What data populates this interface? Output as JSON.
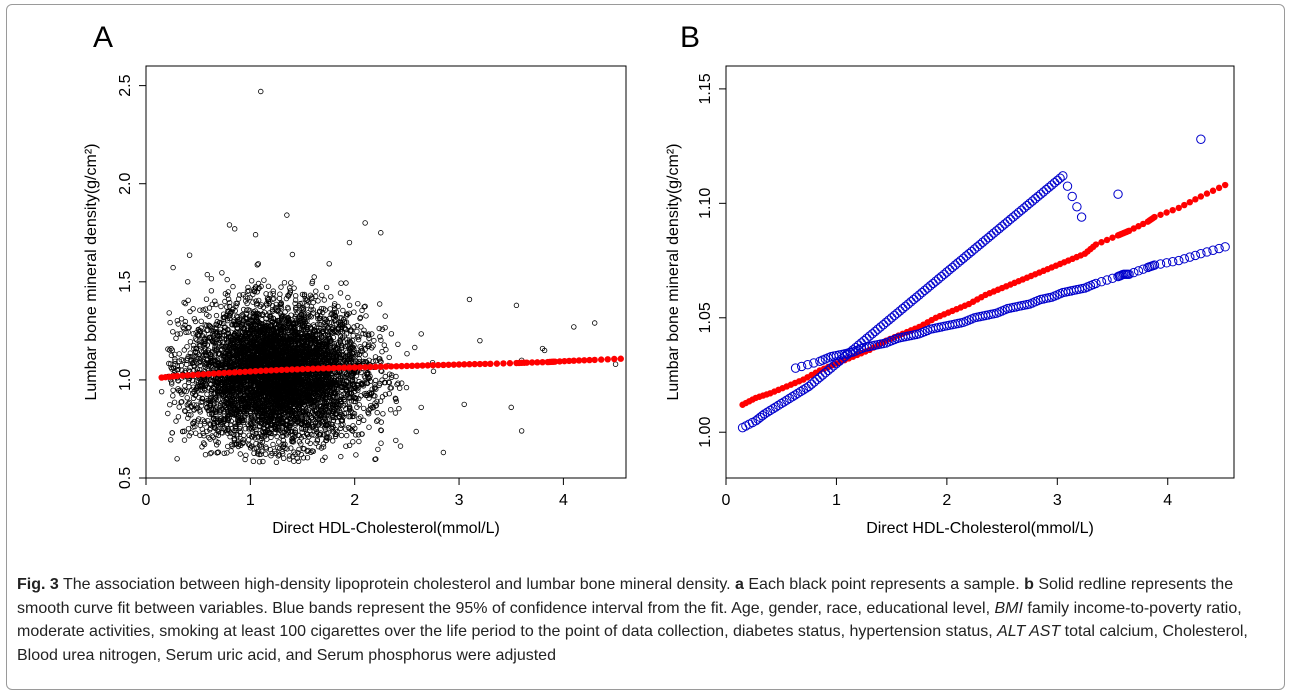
{
  "chart_data": [
    {
      "panel": "A",
      "type": "scatter",
      "title": "",
      "xlabel": "Direct HDL-Cholesterol(mmol/L)",
      "ylabel": "Lumbar bone mineral density(g/cm²)",
      "xlim": [
        0,
        4.6
      ],
      "ylim": [
        0.5,
        2.6
      ],
      "xticks": [
        0,
        1,
        2,
        3,
        4
      ],
      "yticks": [
        0.5,
        1.0,
        1.5,
        2.0,
        2.5
      ],
      "grid": false,
      "series": [
        {
          "kind": "points",
          "marker": "open-circle",
          "color": "#000000",
          "cloud": {
            "x_center": 1.25,
            "x_spread": 0.42,
            "y_center": 1.03,
            "y_spread": 0.17,
            "n": 6000
          },
          "x": [
            1.1,
            0.8,
            0.85,
            1.05,
            1.35,
            1.95,
            2.1,
            2.25,
            0.3,
            0.4,
            3.1,
            3.2,
            3.55,
            3.6,
            3.8,
            3.82,
            4.1,
            4.3,
            4.5,
            3.5,
            3.6,
            2.85,
            0.45,
            1.25,
            1.45,
            0.25,
            0.15
          ],
          "y": [
            2.47,
            1.79,
            1.77,
            1.74,
            1.84,
            1.7,
            1.8,
            1.75,
            1.07,
            1.5,
            1.41,
            1.2,
            1.38,
            1.1,
            1.16,
            1.15,
            1.27,
            1.29,
            1.08,
            0.86,
            0.74,
            0.63,
            0.76,
            0.58,
            0.6,
            0.73,
            0.94
          ]
        },
        {
          "kind": "fit",
          "marker": "filled-circle",
          "color": "#ff0000",
          "x": [
            0.15,
            0.3,
            0.5,
            0.7,
            0.9,
            1.1,
            1.3,
            1.5,
            1.7,
            1.9,
            2.1,
            2.3,
            2.5,
            2.7,
            2.9,
            3.1,
            3.3,
            3.55,
            3.65,
            3.85,
            3.92,
            4.1,
            4.3,
            4.55
          ],
          "y": [
            1.012,
            1.02,
            1.027,
            1.034,
            1.04,
            1.046,
            1.051,
            1.055,
            1.059,
            1.062,
            1.065,
            1.068,
            1.071,
            1.074,
            1.077,
            1.08,
            1.082,
            1.086,
            1.088,
            1.091,
            1.093,
            1.098,
            1.102,
            1.108
          ]
        }
      ]
    },
    {
      "panel": "B",
      "type": "scatter",
      "title": "",
      "xlabel": "Direct HDL-Cholesterol(mmol/L)",
      "ylabel": "Lumbar bone mineral density(g/cm²)",
      "xlim": [
        0,
        4.6
      ],
      "ylim": [
        0.98,
        1.16
      ],
      "xticks": [
        0,
        1,
        2,
        3,
        4
      ],
      "yticks": [
        1.0,
        1.05,
        1.1,
        1.15
      ],
      "grid": false,
      "series": [
        {
          "kind": "fit",
          "marker": "filled-circle",
          "color": "#ff0000",
          "x": [
            0.15,
            0.27,
            0.4,
            0.55,
            0.7,
            0.85,
            1.0,
            1.15,
            1.3,
            1.45,
            1.6,
            1.75,
            1.9,
            2.05,
            2.2,
            2.35,
            2.5,
            2.65,
            2.8,
            2.95,
            3.1,
            3.25,
            3.35,
            3.55,
            3.6,
            3.65,
            3.82,
            3.88,
            4.1,
            4.3,
            4.52
          ],
          "y": [
            1.012,
            1.015,
            1.017,
            1.02,
            1.023,
            1.027,
            1.03,
            1.033,
            1.036,
            1.04,
            1.043,
            1.046,
            1.05,
            1.053,
            1.056,
            1.06,
            1.063,
            1.066,
            1.069,
            1.072,
            1.075,
            1.078,
            1.082,
            1.086,
            1.087,
            1.088,
            1.092,
            1.094,
            1.098,
            1.103,
            1.108
          ]
        },
        {
          "kind": "ci-upper",
          "marker": "open-circle",
          "color": "#0000cc",
          "x": [
            0.15,
            0.27,
            0.35,
            0.45,
            0.55,
            0.65,
            0.75,
            0.85,
            0.95,
            1.05,
            1.15,
            1.25,
            1.35,
            1.45,
            1.55,
            1.65,
            1.75,
            1.85,
            1.95,
            2.05,
            2.15,
            2.25,
            2.35,
            2.45,
            2.55,
            2.65,
            2.75,
            2.85,
            2.95,
            3.05,
            3.22,
            3.55,
            4.3
          ],
          "y": [
            1.002,
            1.005,
            1.008,
            1.011,
            1.014,
            1.017,
            1.02,
            1.024,
            1.028,
            1.032,
            1.036,
            1.04,
            1.044,
            1.048,
            1.052,
            1.056,
            1.06,
            1.064,
            1.068,
            1.072,
            1.076,
            1.08,
            1.084,
            1.088,
            1.092,
            1.096,
            1.1,
            1.104,
            1.108,
            1.112,
            1.094,
            1.104,
            1.128
          ]
        },
        {
          "kind": "ci-lower",
          "marker": "open-circle",
          "color": "#0000cc",
          "x": [
            0.63,
            0.85,
            0.95,
            1.05,
            1.15,
            1.25,
            1.35,
            1.45,
            1.55,
            1.65,
            1.75,
            1.85,
            1.95,
            2.05,
            2.15,
            2.25,
            2.35,
            2.45,
            2.55,
            2.65,
            2.75,
            2.85,
            2.95,
            3.05,
            3.15,
            3.25,
            3.35,
            3.55,
            3.6,
            3.65,
            3.82,
            3.88,
            4.1,
            4.3,
            4.52
          ],
          "y": [
            1.028,
            1.031,
            1.033,
            1.034,
            1.035,
            1.037,
            1.038,
            1.039,
            1.041,
            1.042,
            1.043,
            1.045,
            1.046,
            1.047,
            1.048,
            1.05,
            1.051,
            1.052,
            1.054,
            1.055,
            1.056,
            1.058,
            1.059,
            1.061,
            1.062,
            1.063,
            1.065,
            1.068,
            1.069,
            1.069,
            1.072,
            1.073,
            1.075,
            1.078,
            1.081
          ]
        }
      ]
    }
  ],
  "caption": {
    "fig_label": "Fig. 3",
    "parts": [
      {
        "t": "  The association between high-density lipoprotein cholesterol and lumbar bone mineral density. ",
        "s": ""
      },
      {
        "t": "a",
        "s": "b"
      },
      {
        "t": " Each black point represents a sample. ",
        "s": ""
      },
      {
        "t": "b",
        "s": "b"
      },
      {
        "t": " Solid redline represents the smooth curve fit between variables. Blue bands represent the 95% of confidence interval from the fit. Age, gender, race, educational level, ",
        "s": ""
      },
      {
        "t": "BMI",
        "s": "i"
      },
      {
        "t": " family income-to-poverty ratio, moderate activities, smoking at least 100 cigarettes over the life period to the point of data collection, diabetes status, hypertension status, ",
        "s": ""
      },
      {
        "t": "ALT AST",
        "s": "i"
      },
      {
        "t": " total calcium, Cholesterol, Blood urea nitrogen, Serum uric acid, and Serum phosphorus were adjusted",
        "s": ""
      }
    ]
  }
}
